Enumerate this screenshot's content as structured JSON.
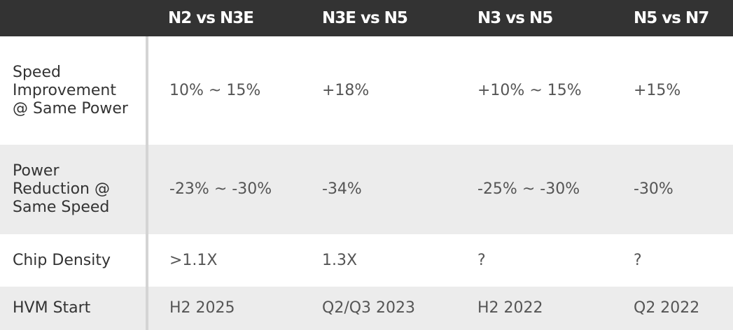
{
  "table": {
    "header": [
      "",
      "N2 vs N3E",
      "N3E vs N5",
      "N3 vs N5",
      "N5 vs N7"
    ],
    "rows": [
      [
        "Speed Improvement @ Same Power",
        "10% ~ 15%",
        "+18%",
        "+10% ~ 15%",
        "+15%"
      ],
      [
        "Power Reduction @ Same Speed",
        "-23% ~ -30%",
        "-34%",
        "-25% ~ -30%",
        "-30%"
      ],
      [
        "Chip Density",
        ">1.1X",
        "1.3X",
        "?",
        "?"
      ],
      [
        "HVM Start",
        "H2 2025",
        "Q2/Q3 2023",
        "H2 2022",
        "Q2 2022"
      ]
    ]
  }
}
